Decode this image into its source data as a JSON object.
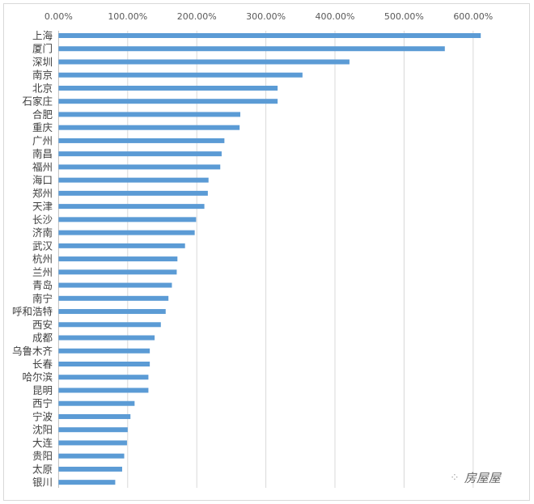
{
  "chart_data": {
    "type": "bar",
    "orientation": "horizontal",
    "title": "",
    "xlabel": "",
    "ylabel": "",
    "xlim": [
      0,
      600
    ],
    "x_ticks": [
      "0.00%",
      "100.00%",
      "200.00%",
      "300.00%",
      "400.00%",
      "500.00%",
      "600.00%"
    ],
    "x_axis_position": "top",
    "grid": true,
    "legend": "none",
    "bar_color": "#5b9bd5",
    "categories": [
      "上海",
      "厦门",
      "深圳",
      "南京",
      "北京",
      "石家庄",
      "合肥",
      "重庆",
      "广州",
      "南昌",
      "福州",
      "海口",
      "郑州",
      "天津",
      "长沙",
      "济南",
      "武汉",
      "杭州",
      "兰州",
      "青岛",
      "南宁",
      "呼和浩特",
      "西安",
      "成都",
      "乌鲁木齐",
      "长春",
      "哈尔滨",
      "昆明",
      "西宁",
      "宁波",
      "沈阳",
      "大连",
      "贵阳",
      "太原",
      "银川"
    ],
    "values": [
      611,
      559,
      421,
      353,
      317,
      317,
      263,
      262,
      240,
      236,
      234,
      217,
      216,
      211,
      199,
      197,
      183,
      172,
      171,
      164,
      159,
      155,
      148,
      139,
      132,
      132,
      130,
      130,
      110,
      104,
      100,
      99,
      95,
      92,
      82
    ],
    "unit": "%"
  },
  "watermark": {
    "text": "房屋屋",
    "icon": "wechat-icon"
  }
}
